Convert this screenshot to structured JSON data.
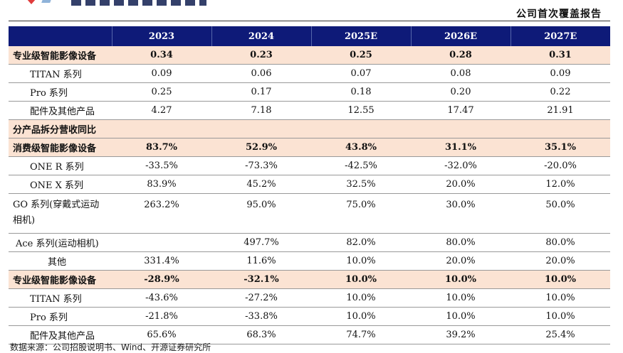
{
  "header": {
    "report_type": "公司首次覆盖报告"
  },
  "table": {
    "columns": [
      "",
      "2023",
      "2024",
      "2025E",
      "2026E",
      "2027E"
    ],
    "rows": [
      {
        "label": "专业级智能影像设备",
        "values": [
          "0.34",
          "0.23",
          "0.25",
          "0.28",
          "0.31"
        ],
        "style": "hl"
      },
      {
        "label": "TITAN 系列",
        "values": [
          "0.09",
          "0.06",
          "0.07",
          "0.08",
          "0.09"
        ],
        "style": "indent"
      },
      {
        "label": "Pro 系列",
        "values": [
          "0.25",
          "0.17",
          "0.18",
          "0.20",
          "0.22"
        ],
        "style": "indent"
      },
      {
        "label": "配件及其他产品",
        "values": [
          "4.27",
          "7.18",
          "12.55",
          "17.47",
          "21.91"
        ],
        "style": "indent"
      },
      {
        "label": "分产品拆分营收同比",
        "values": [
          "",
          "",
          "",
          "",
          ""
        ],
        "style": "sec"
      },
      {
        "label": "消费级智能影像设备",
        "values": [
          "83.7%",
          "52.9%",
          "43.8%",
          "31.1%",
          "35.1%"
        ],
        "style": "hl"
      },
      {
        "label": "ONE R 系列",
        "values": [
          "-33.5%",
          "-73.3%",
          "-42.5%",
          "-32.0%",
          "-20.0%"
        ],
        "style": "indent"
      },
      {
        "label": "ONE X 系列",
        "values": [
          "83.9%",
          "45.2%",
          "32.5%",
          "20.0%",
          "12.0%"
        ],
        "style": "indent"
      },
      {
        "label": "GO 系列(穿戴式运动相机)",
        "values": [
          "263.2%",
          "95.0%",
          "75.0%",
          "30.0%",
          "50.0%"
        ],
        "style": "tall"
      },
      {
        "label": "Ace 系列(运动相机)",
        "values": [
          "",
          "497.7%",
          "82.0%",
          "80.0%",
          "80.0%"
        ],
        "style": "plain"
      },
      {
        "label": "其他",
        "values": [
          "331.4%",
          "11.6%",
          "10.0%",
          "20.0%",
          "20.0%"
        ],
        "style": "indent2"
      },
      {
        "label": "专业级智能影像设备",
        "values": [
          "-28.9%",
          "-32.1%",
          "10.0%",
          "10.0%",
          "10.0%"
        ],
        "style": "hl"
      },
      {
        "label": "TITAN 系列",
        "values": [
          "-43.6%",
          "-27.2%",
          "10.0%",
          "10.0%",
          "10.0%"
        ],
        "style": "indent"
      },
      {
        "label": "Pro 系列",
        "values": [
          "-21.8%",
          "-33.8%",
          "10.0%",
          "10.0%",
          "10.0%"
        ],
        "style": "indent"
      },
      {
        "label": "配件及其他产品",
        "values": [
          "65.6%",
          "68.3%",
          "74.7%",
          "39.2%",
          "25.4%"
        ],
        "style": "indent"
      }
    ]
  },
  "source": "数据来源：公司招股说明书、Wind、开源证券研究所"
}
